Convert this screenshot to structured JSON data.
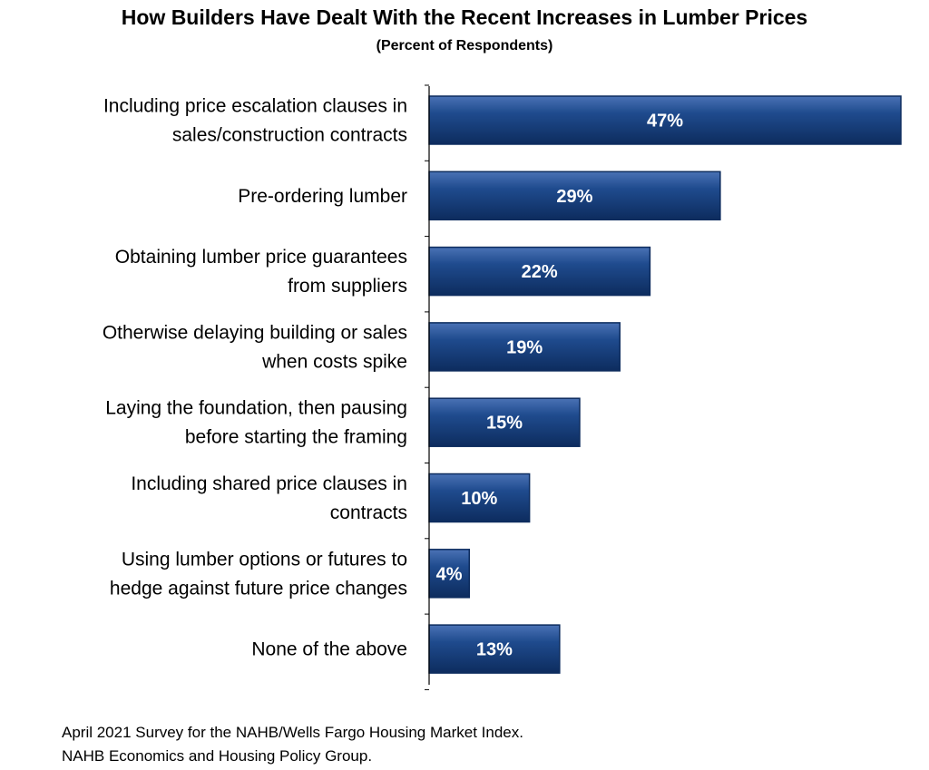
{
  "chart_data": {
    "type": "bar",
    "orientation": "horizontal",
    "title": "How Builders Have Dealt With the Recent Increases in Lumber Prices",
    "subtitle": "(Percent of Respondents)",
    "categories": [
      [
        "Including price escalation clauses in",
        "sales/construction contracts"
      ],
      [
        "Pre-ordering lumber"
      ],
      [
        "Obtaining lumber price guarantees",
        "from suppliers"
      ],
      [
        "Otherwise delaying building or sales",
        "when costs spike"
      ],
      [
        "Laying the foundation, then pausing",
        "before starting the framing"
      ],
      [
        "Including shared price clauses in",
        "contracts"
      ],
      [
        "Using lumber options or futures to",
        "hedge against future price changes"
      ],
      [
        "None of the above"
      ]
    ],
    "values": [
      47,
      29,
      22,
      19,
      15,
      10,
      4,
      13
    ],
    "value_labels": [
      "47%",
      "29%",
      "22%",
      "19%",
      "15%",
      "10%",
      "4%",
      "13%"
    ],
    "xlim": [
      0,
      47
    ],
    "grid": false,
    "colors": {
      "bar": "#1f4b8e",
      "bar_dark": "#0d2c5e",
      "bar_light": "#4a72b5"
    }
  },
  "footnote": {
    "line1": "April 2021 Survey for the NAHB/Wells Fargo Housing Market Index.",
    "line2": "NAHB Economics and Housing Policy Group."
  }
}
